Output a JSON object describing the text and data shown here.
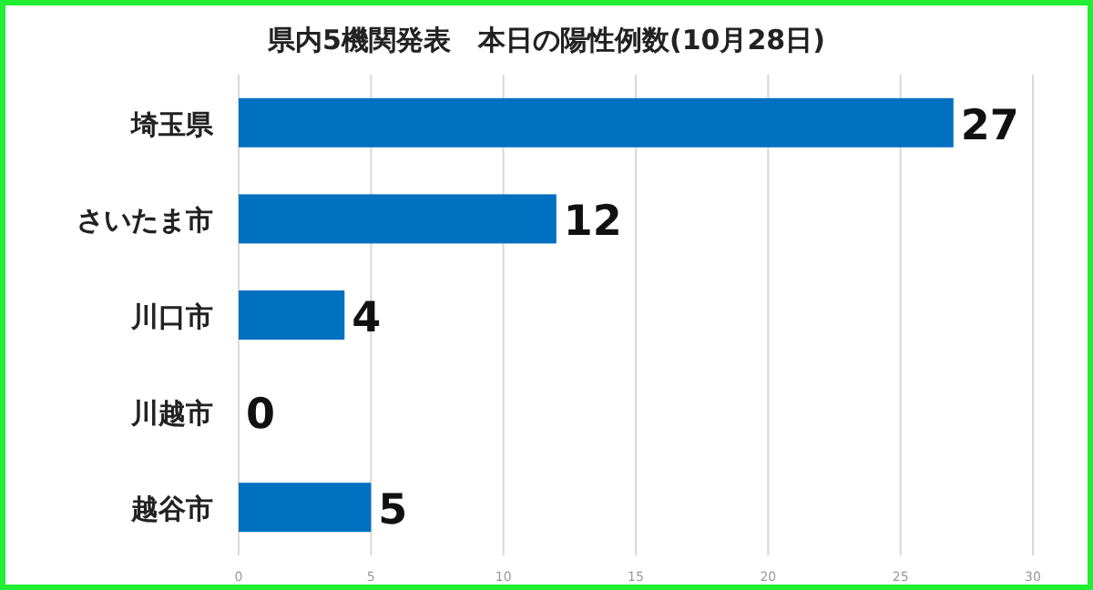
{
  "chart_data": {
    "type": "bar",
    "orientation": "horizontal",
    "title": "県内5機関発表　本日の陽性例数(10月28日)",
    "categories": [
      "埼玉県",
      "さいたま市",
      "川口市",
      "川越市",
      "越谷市"
    ],
    "values": [
      27,
      12,
      4,
      0,
      5
    ],
    "color": "#0070c0",
    "xlim": [
      0,
      30
    ],
    "xticks": [
      0,
      5,
      10,
      15,
      20,
      25,
      30
    ],
    "grid": "x",
    "data_labels": true
  }
}
